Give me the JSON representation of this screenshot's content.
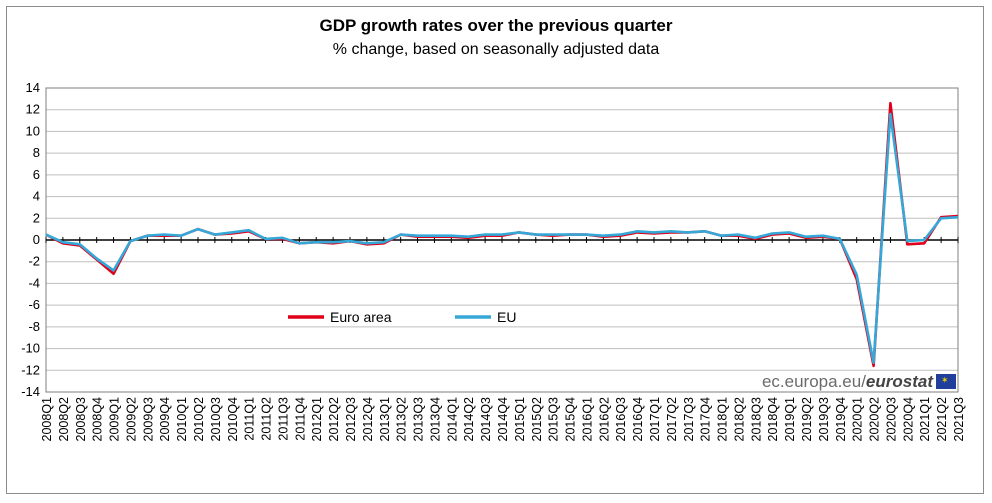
{
  "chart_data": {
    "type": "line",
    "title": "GDP growth rates over the previous quarter",
    "subtitle": "% change, based on seasonally adjusted data",
    "categories": [
      "2008Q1",
      "2008Q2",
      "2008Q3",
      "2008Q4",
      "2009Q1",
      "2009Q2",
      "2009Q3",
      "2009Q4",
      "2010Q1",
      "2010Q2",
      "2010Q3",
      "2010Q4",
      "2011Q1",
      "2011Q2",
      "2011Q3",
      "2011Q4",
      "2012Q1",
      "2012Q2",
      "2012Q3",
      "2012Q4",
      "2013Q1",
      "2013Q2",
      "2013Q3",
      "2013Q4",
      "2014Q1",
      "2014Q2",
      "2014Q3",
      "2014Q4",
      "2015Q1",
      "2015Q2",
      "2015Q3",
      "2015Q4",
      "2016Q1",
      "2016Q2",
      "2016Q3",
      "2016Q4",
      "2017Q1",
      "2017Q2",
      "2017Q3",
      "2017Q4",
      "2018Q1",
      "2018Q2",
      "2018Q3",
      "2018Q4",
      "2019Q1",
      "2019Q2",
      "2019Q3",
      "2019Q4",
      "2020Q1",
      "2020Q2",
      "2020Q3",
      "2020Q4",
      "2021Q1",
      "2021Q2",
      "2021Q3"
    ],
    "series": [
      {
        "name": "Euro area",
        "color": "#e0001a",
        "values": [
          0.5,
          -0.3,
          -0.5,
          -1.8,
          -3.1,
          -0.1,
          0.4,
          0.4,
          0.4,
          1.0,
          0.5,
          0.6,
          0.8,
          0.1,
          0.1,
          -0.3,
          -0.2,
          -0.3,
          -0.1,
          -0.4,
          -0.3,
          0.5,
          0.3,
          0.3,
          0.3,
          0.2,
          0.4,
          0.4,
          0.7,
          0.5,
          0.4,
          0.5,
          0.5,
          0.3,
          0.4,
          0.7,
          0.6,
          0.7,
          0.7,
          0.8,
          0.4,
          0.4,
          0.1,
          0.5,
          0.6,
          0.2,
          0.3,
          0.1,
          -3.6,
          -11.6,
          12.6,
          -0.4,
          -0.3,
          2.1,
          2.2
        ]
      },
      {
        "name": "EU",
        "color": "#35a8d8",
        "values": [
          0.5,
          -0.2,
          -0.4,
          -1.7,
          -2.8,
          -0.1,
          0.4,
          0.5,
          0.4,
          1.0,
          0.5,
          0.7,
          0.9,
          0.1,
          0.2,
          -0.3,
          -0.2,
          -0.2,
          -0.1,
          -0.3,
          -0.2,
          0.5,
          0.4,
          0.4,
          0.4,
          0.3,
          0.5,
          0.5,
          0.7,
          0.5,
          0.5,
          0.5,
          0.5,
          0.4,
          0.5,
          0.8,
          0.7,
          0.8,
          0.7,
          0.8,
          0.4,
          0.5,
          0.2,
          0.6,
          0.7,
          0.3,
          0.4,
          0.1,
          -3.2,
          -11.3,
          11.6,
          -0.1,
          0.0,
          2.0,
          2.1
        ]
      }
    ],
    "ylim": [
      -14,
      14
    ],
    "yticks": [
      14,
      12,
      10,
      8,
      6,
      4,
      2,
      0,
      -2,
      -4,
      -6,
      -8,
      -10,
      -12,
      -14
    ],
    "grid": true,
    "legend_position": "lower-left inside plot"
  },
  "branding": {
    "site": "ec.europa.eu/",
    "name": "eurostat",
    "icon": "eu-flag-icon"
  }
}
